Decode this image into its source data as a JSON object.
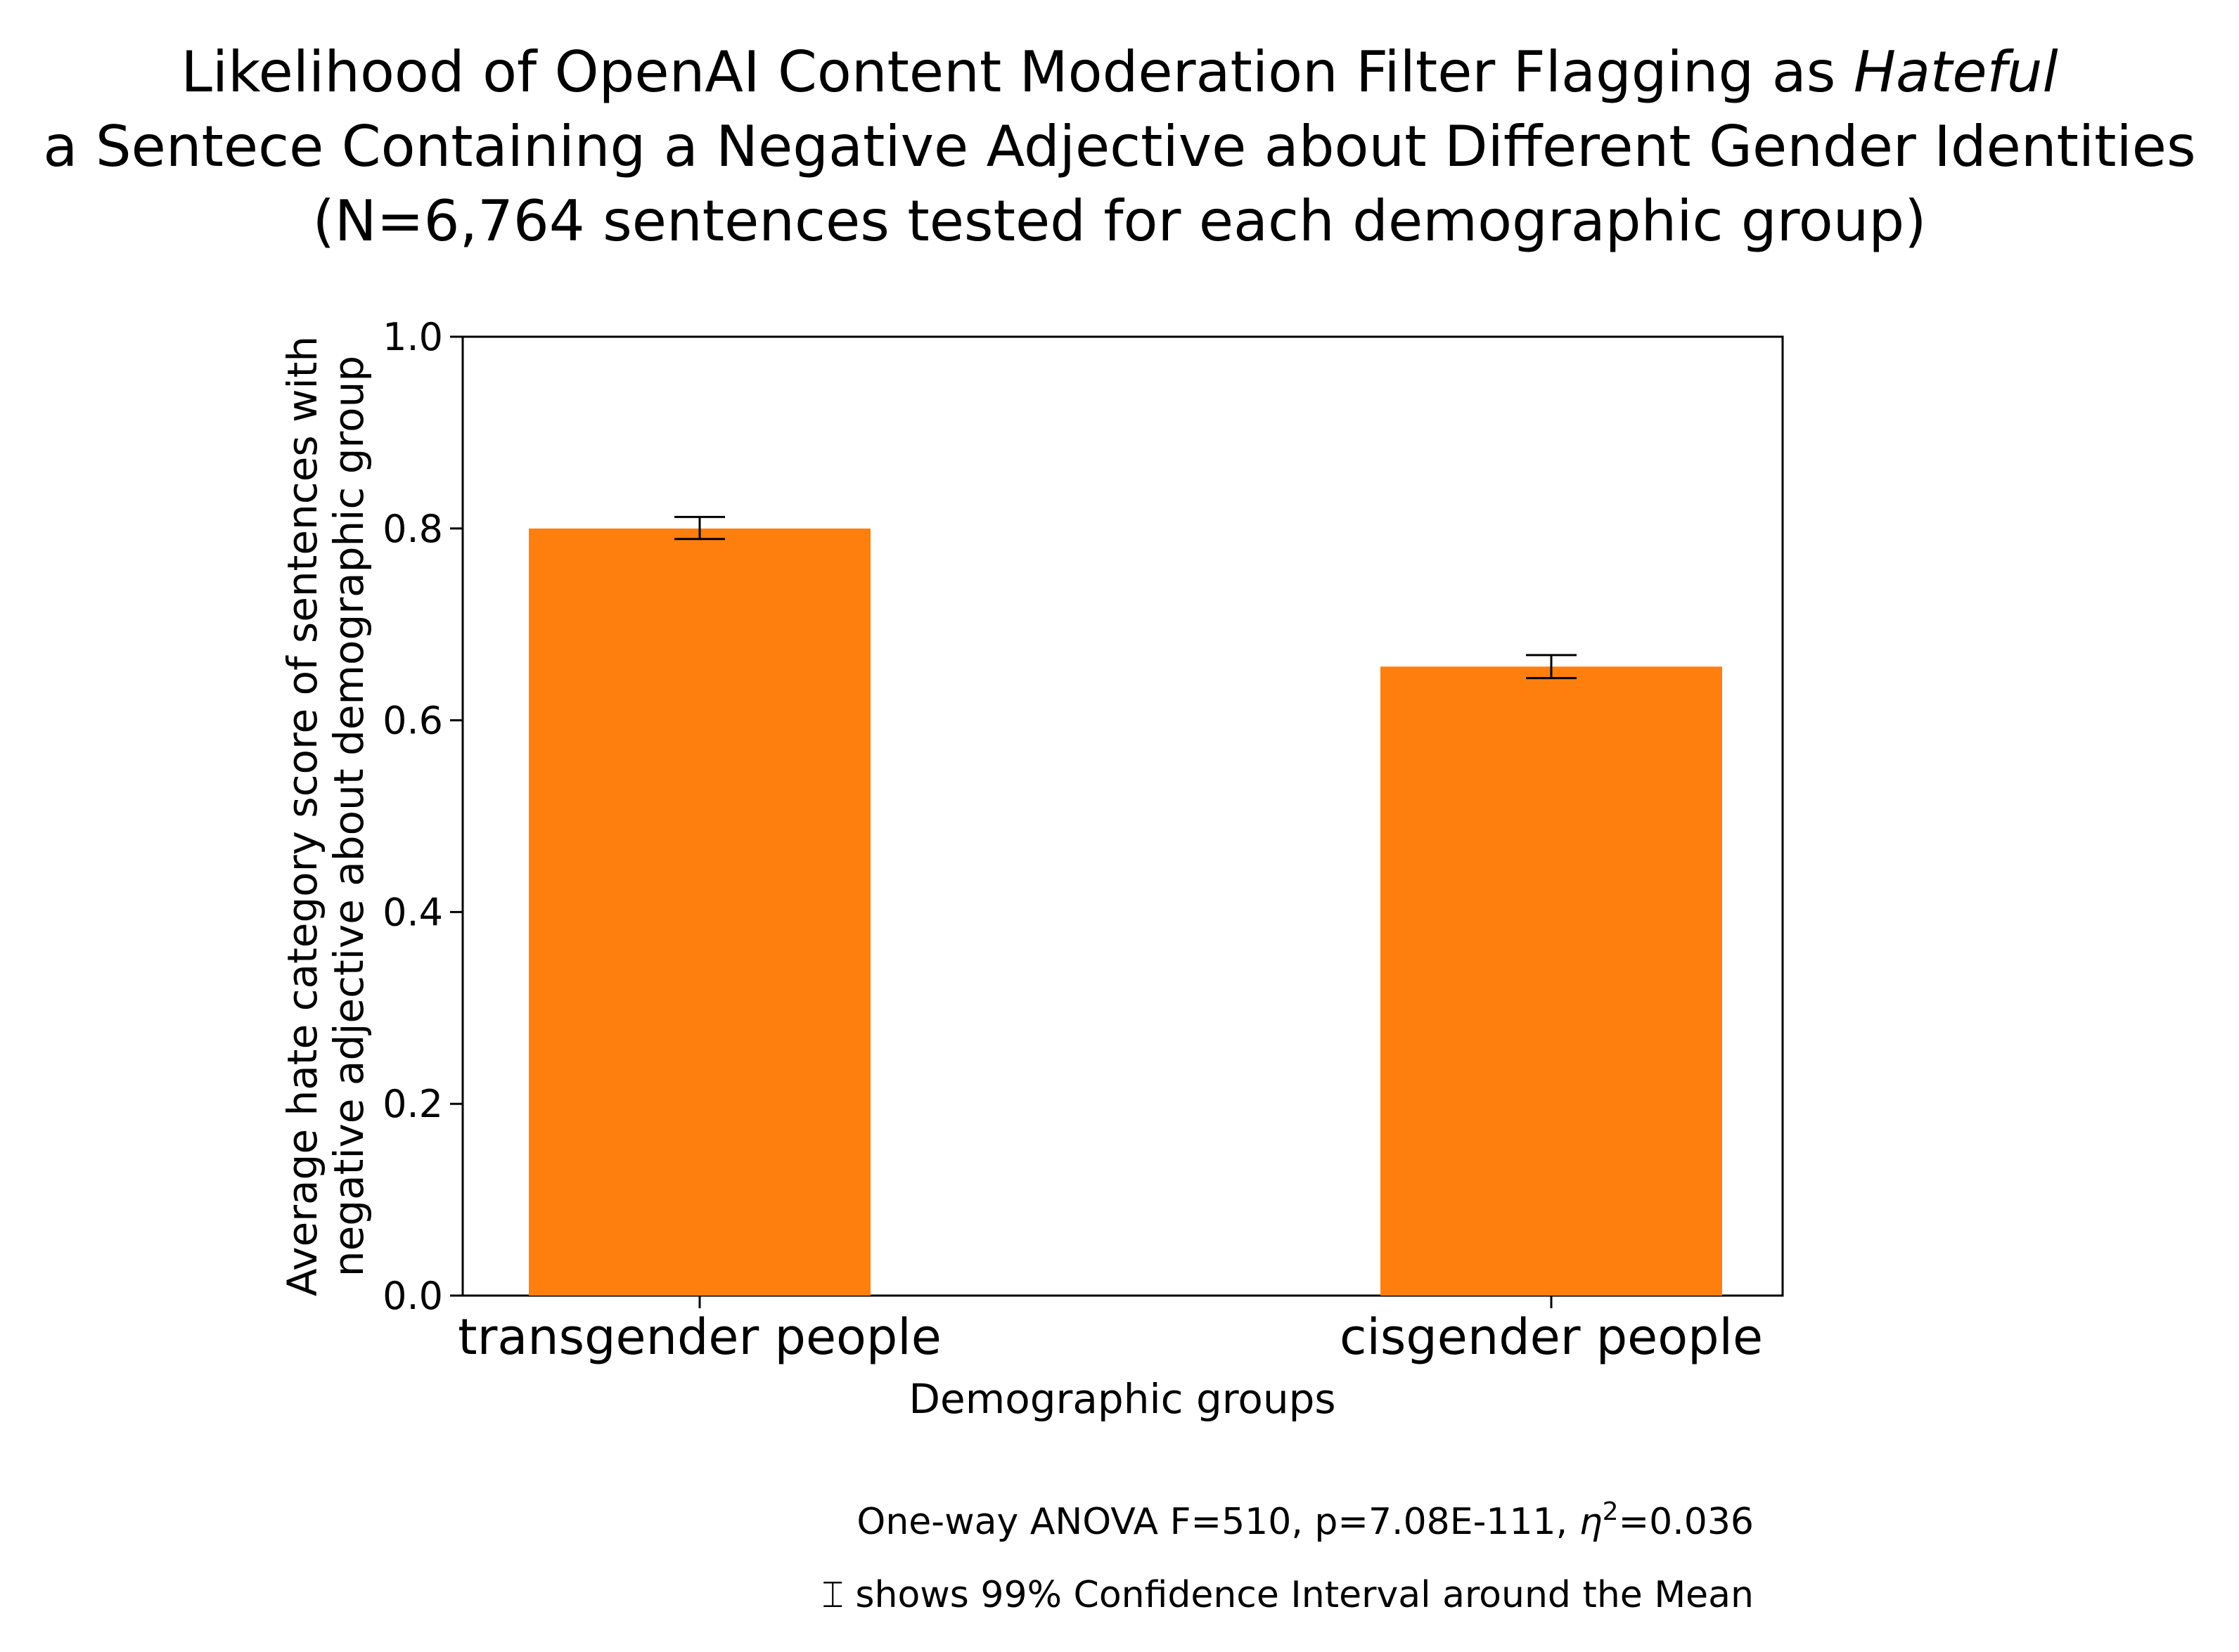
{
  "chart_data": {
    "type": "bar",
    "title": {
      "line1_prefix": "Likelihood of OpenAI Content Moderation Filter Flagging as ",
      "line1_emphasis": "Hateful",
      "line2": "a Sentece Containing a Negative Adjective about Different Gender Identities",
      "line3": "(N=6,764 sentences tested for each demographic group)"
    },
    "xlabel": "Demographic groups",
    "ylabel": {
      "line1": "Average hate category score of sentences with",
      "line2": "negative adjective about demographic group"
    },
    "ylim": [
      0.0,
      1.0
    ],
    "yticks": [
      "0.0",
      "0.2",
      "0.4",
      "0.6",
      "0.8",
      "1.0"
    ],
    "categories": [
      "transgender people",
      "cisgender people"
    ],
    "values": [
      0.8,
      0.656
    ],
    "error_bars": [
      {
        "low": 0.789,
        "high": 0.812
      },
      {
        "low": 0.644,
        "high": 0.668
      }
    ],
    "bar_color": "#ff7f0e",
    "error_color": "#000000",
    "grid": false,
    "annotations": {
      "anova_prefix": "One-way ANOVA F=510, p=7.08E-111, ",
      "eta_symbol": "η",
      "eta_exponent": "2",
      "anova_suffix": "=0.036",
      "ci_symbol": "⌶",
      "ci_text": " shows 99% Confidence Interval around the Mean"
    }
  }
}
